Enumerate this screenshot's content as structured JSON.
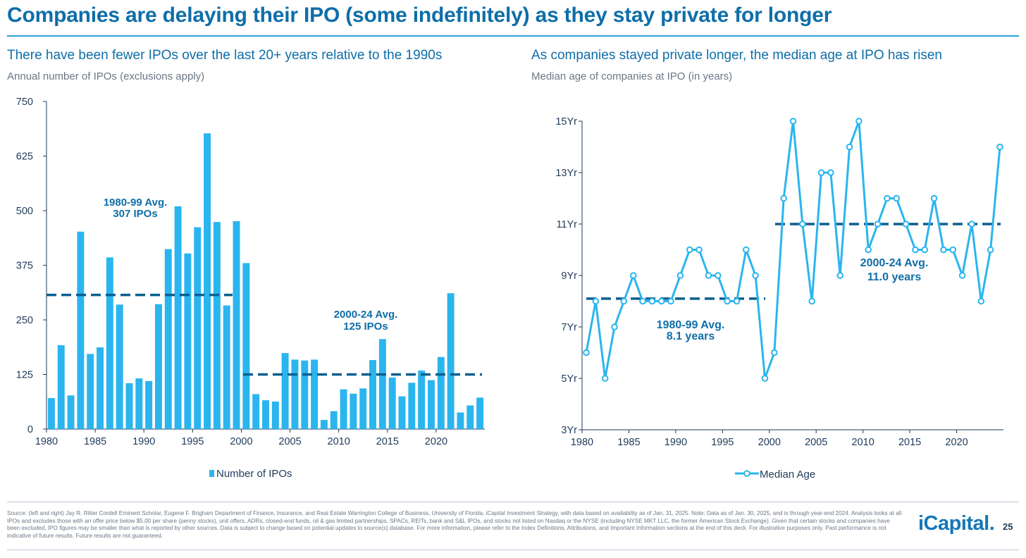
{
  "title": "Companies are delaying their IPO (some indefinitely) as they stay private for longer",
  "left": {
    "heading": "There have been fewer IPOs over the last 20+ years relative to the 1990s",
    "subheading": "Annual number of IPOs (exclusions apply)"
  },
  "right": {
    "heading": "As companies stayed private longer, the median age at IPO has risen",
    "subheading": "Median age of companies at IPO (in years)"
  },
  "chart_data": [
    {
      "type": "bar",
      "title": "There have been fewer IPOs over the last 20+ years relative to the 1990s",
      "subtitle": "Annual number of IPOs (exclusions apply)",
      "x": [
        1980,
        1981,
        1982,
        1983,
        1984,
        1985,
        1986,
        1987,
        1988,
        1989,
        1990,
        1991,
        1992,
        1993,
        1994,
        1995,
        1996,
        1997,
        1998,
        1999,
        2000,
        2001,
        2002,
        2003,
        2004,
        2005,
        2006,
        2007,
        2008,
        2009,
        2010,
        2011,
        2012,
        2013,
        2014,
        2015,
        2016,
        2017,
        2018,
        2019,
        2020,
        2021,
        2022,
        2023,
        2024
      ],
      "series": [
        {
          "name": "Number of IPOs",
          "color": "#2bb5ee",
          "values": [
            71,
            192,
            77,
            452,
            172,
            187,
            393,
            285,
            105,
            116,
            110,
            286,
            412,
            510,
            402,
            462,
            677,
            474,
            283,
            476,
            380,
            80,
            66,
            63,
            174,
            159,
            157,
            159,
            21,
            41,
            91,
            81,
            93,
            158,
            206,
            118,
            75,
            106,
            134,
            112,
            165,
            311,
            38,
            54,
            72
          ]
        }
      ],
      "xticks": [
        "1980",
        "1985",
        "1990",
        "1995",
        "2000",
        "2005",
        "2010",
        "2015",
        "2020"
      ],
      "yticks": [
        "0",
        "125",
        "250",
        "375",
        "500",
        "625",
        "750"
      ],
      "ylim": [
        0,
        750
      ],
      "reference_lines": [
        {
          "label_line1": "1980-99 Avg.",
          "label_line2": "307 IPOs",
          "value": 307,
          "from": 1980,
          "to": 1999
        },
        {
          "label_line1": "2000-24 Avg.",
          "label_line2": "125 IPOs",
          "value": 125,
          "from": 2000,
          "to": 2024
        }
      ],
      "legend": "Number of IPOs",
      "legend_position": "bottom"
    },
    {
      "type": "line",
      "title": "As companies stayed private longer, the median age at IPO has risen",
      "subtitle": "Median age of companies at IPO (in years)",
      "x": [
        1980,
        1981,
        1982,
        1983,
        1984,
        1985,
        1986,
        1987,
        1988,
        1989,
        1990,
        1991,
        1992,
        1993,
        1994,
        1995,
        1996,
        1997,
        1998,
        1999,
        2000,
        2001,
        2002,
        2003,
        2004,
        2005,
        2006,
        2007,
        2008,
        2009,
        2010,
        2011,
        2012,
        2013,
        2014,
        2015,
        2016,
        2017,
        2018,
        2019,
        2020,
        2021,
        2022,
        2023,
        2024
      ],
      "series": [
        {
          "name": "Median Age",
          "color": "#2bb5ee",
          "values": [
            6,
            8,
            5,
            7,
            8,
            9,
            8,
            8,
            8,
            8,
            9,
            10,
            10,
            9,
            9,
            8,
            8,
            10,
            9,
            5,
            6,
            12,
            15,
            11,
            8,
            13,
            13,
            9,
            14,
            15,
            10,
            11,
            12,
            12,
            11,
            10,
            10,
            12,
            10,
            10,
            9,
            11,
            8,
            10,
            14
          ]
        }
      ],
      "xticks": [
        "1980",
        "1985",
        "1990",
        "1995",
        "2000",
        "2005",
        "2010",
        "2015",
        "2020"
      ],
      "yticks": [
        "3Yr",
        "5Yr",
        "7Yr",
        "9Yr",
        "11Yr",
        "13Yr",
        "15Yr"
      ],
      "ylim": [
        3,
        15
      ],
      "reference_lines": [
        {
          "label_line1": "1980-99 Avg.",
          "label_line2": "8.1 years",
          "value": 8.1,
          "from": 1980,
          "to": 1999
        },
        {
          "label_line1": "2000-24 Avg.",
          "label_line2": "11.0 years",
          "value": 11.0,
          "from": 2000,
          "to": 2024
        }
      ],
      "legend": "Median Age",
      "legend_position": "bottom"
    }
  ],
  "footer": {
    "source": "Source: (left and right) Jay R. Ritter Cordell Eminent Scholar, Eugene F. Brigham Department of Finance, Insurance, and Real Estate Warrington College of Business, University of Florida, iCapital Investment Strategy, with data based on availability as of Jan. 31, 2025. Note: Data as of Jan. 30, 2025, and is through year-end 2024. Analysis looks at all IPOs and excludes those with an offer price below $5.00 per share (penny stocks), unit offers, ADRs, closed-end funds, oil & gas limited partnerships, SPACs, REITs, bank and S&L IPOs, and stocks not listed on Nasdaq or the NYSE (including NYSE MKT LLC, the former American Stock Exchange). Given that certain stocks and companies have been excluded, IPO figures may be smaller than what is reported by other sources. Data is subject to change based on potential updates to source(s) database. For more information, please refer to the Index Definitions, Attributions, and Important Information sections at the end of this deck. For illustrative purposes only. Past performance is not indicative of future results. Future results are not guaranteed.",
    "brand": "iCapital.",
    "page": "25"
  },
  "colors": {
    "accent": "#0e6ea8",
    "series": "#2bb5ee",
    "avg_line": "#0b5f8f"
  }
}
